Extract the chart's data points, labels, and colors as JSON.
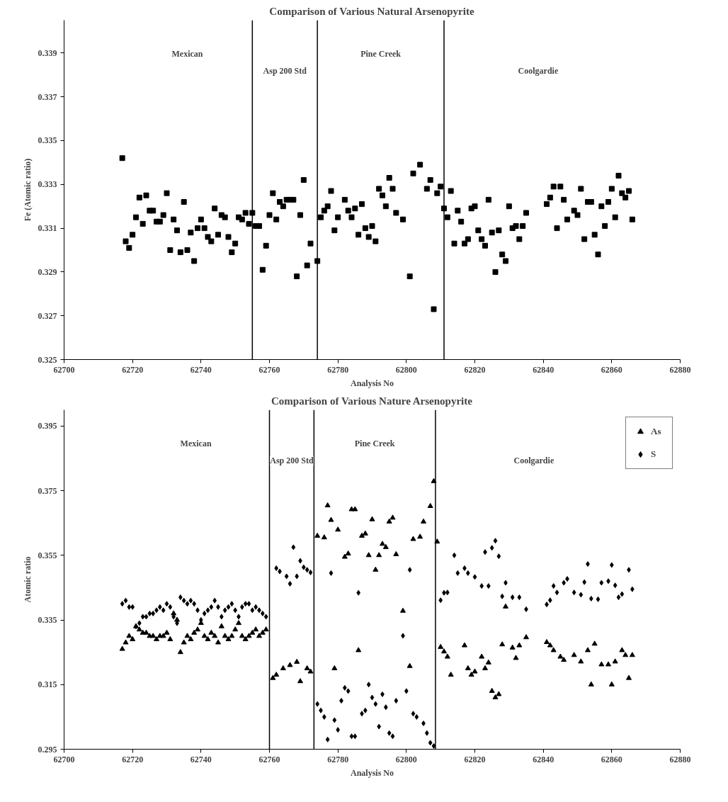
{
  "chart_data": [
    {
      "type": "scatter",
      "title": "Comparison of Various Natural Arsenopyrite",
      "xlabel": "Analysis No",
      "ylabel": "Fe (Atomic ratio)",
      "xlim": [
        62700,
        62880
      ],
      "xticks": [
        62700,
        62720,
        62740,
        62760,
        62780,
        62800,
        62820,
        62840,
        62860,
        62880
      ],
      "ylim": [
        0.325,
        0.3405
      ],
      "yticks": [
        0.325,
        0.327,
        0.329,
        0.331,
        0.333,
        0.335,
        0.337,
        0.339
      ],
      "grid": false,
      "marker": "square",
      "series": [
        {
          "color": "#000000",
          "x": [
            62717,
            62718,
            62719,
            62720,
            62721,
            62722,
            62723,
            62724,
            62725,
            62726,
            62727,
            62728,
            62729,
            62730,
            62731,
            62732,
            62733,
            62734,
            62735,
            62736,
            62737,
            62738,
            62739,
            62740,
            62741,
            62742,
            62743,
            62744,
            62745,
            62746,
            62747,
            62748,
            62749,
            62750,
            62751,
            62752,
            62753,
            62754,
            62755,
            62756,
            62757,
            62758,
            62759,
            62760,
            62761,
            62762,
            62763,
            62764,
            62765,
            62766,
            62767,
            62768,
            62769,
            62770,
            62771,
            62772,
            62774,
            62775,
            62776,
            62777,
            62778,
            62779,
            62780,
            62782,
            62783,
            62784,
            62785,
            62786,
            62787,
            62788,
            62789,
            62790,
            62791,
            62792,
            62793,
            62794,
            62795,
            62796,
            62797,
            62799,
            62801,
            62802,
            62804,
            62806,
            62807,
            62808,
            62809,
            62810,
            62811,
            62812,
            62813,
            62814,
            62815,
            62816,
            62817,
            62818,
            62819,
            62820,
            62821,
            62822,
            62823,
            62824,
            62825,
            62826,
            62827,
            62828,
            62829,
            62830,
            62831,
            62832,
            62833,
            62834,
            62835,
            62841,
            62842,
            62843,
            62844,
            62845,
            62846,
            62847,
            62849,
            62850,
            62851,
            62852,
            62853,
            62854,
            62855,
            62856,
            62857,
            62858,
            62859,
            62860,
            62861,
            62862,
            62863,
            62864,
            62865,
            62866
          ],
          "values": [
            0.3342,
            0.3304,
            0.3301,
            0.3307,
            0.3315,
            0.3324,
            0.3312,
            0.3325,
            0.3318,
            0.3318,
            0.3313,
            0.3313,
            0.3316,
            0.3326,
            0.33,
            0.3314,
            0.3309,
            0.3299,
            0.3322,
            0.33,
            0.3308,
            0.3295,
            0.331,
            0.3314,
            0.331,
            0.3306,
            0.3304,
            0.3319,
            0.3307,
            0.3316,
            0.3315,
            0.3306,
            0.3299,
            0.3303,
            0.3315,
            0.3314,
            0.3317,
            0.3312,
            0.3317,
            0.3311,
            0.3311,
            0.3291,
            0.3302,
            0.3316,
            0.3326,
            0.3314,
            0.3322,
            0.332,
            0.3323,
            0.3323,
            0.3323,
            0.3288,
            0.3316,
            0.3332,
            0.3293,
            0.3303,
            0.3295,
            0.3315,
            0.3318,
            0.332,
            0.3327,
            0.3309,
            0.3315,
            0.3323,
            0.3318,
            0.3315,
            0.3319,
            0.3307,
            0.3321,
            0.331,
            0.3306,
            0.3311,
            0.3304,
            0.3328,
            0.3325,
            0.332,
            0.3333,
            0.3328,
            0.3317,
            0.3314,
            0.3288,
            0.3335,
            0.3339,
            0.3328,
            0.3332,
            0.3273,
            0.3326,
            0.3329,
            0.3319,
            0.3315,
            0.3327,
            0.3303,
            0.3318,
            0.3313,
            0.3303,
            0.3305,
            0.3319,
            0.332,
            0.3309,
            0.3305,
            0.3302,
            0.3323,
            0.3308,
            0.329,
            0.3309,
            0.3298,
            0.3295,
            0.332,
            0.331,
            0.3311,
            0.3305,
            0.3311,
            0.3317,
            0.3321,
            0.3324,
            0.3329,
            0.331,
            0.3329,
            0.3323,
            0.3314,
            0.3318,
            0.3316,
            0.3328,
            0.3305,
            0.3322,
            0.3322,
            0.3307,
            0.3298,
            0.332,
            0.3311,
            0.3322,
            0.3328,
            0.3315,
            0.3334,
            0.3326,
            0.3324,
            0.3327,
            0.3314
          ]
        }
      ],
      "ref_lines": [
        {
          "axis": "x",
          "value": 62755,
          "label": null
        },
        {
          "axis": "x",
          "value": 62774,
          "label": null
        },
        {
          "axis": "x",
          "value": 62811,
          "label": null
        }
      ],
      "annotations": [
        "Mexican",
        "Asp 200 Std",
        "Pine Creek",
        "Coolgardie"
      ]
    },
    {
      "type": "scatter",
      "title": "Comparison of Various Nature Arsenopyrite",
      "xlabel": "Analysis No",
      "ylabel": "Atomic ratio",
      "xlim": [
        62700,
        62880
      ],
      "xticks": [
        62700,
        62720,
        62740,
        62760,
        62780,
        62800,
        62820,
        62840,
        62860,
        62880
      ],
      "ylim": [
        0.295,
        0.4
      ],
      "yticks": [
        0.295,
        0.315,
        0.335,
        0.355,
        0.375,
        0.395
      ],
      "grid": false,
      "legend": "top right",
      "series": [
        {
          "name": "As",
          "color": "#000000",
          "marker": "triangle",
          "x": [
            62717,
            62718,
            62719,
            62720,
            62721,
            62722,
            62723,
            62724,
            62725,
            62726,
            62727,
            62728,
            62729,
            62730,
            62731,
            62732,
            62733,
            62734,
            62735,
            62736,
            62737,
            62738,
            62739,
            62740,
            62741,
            62742,
            62743,
            62744,
            62745,
            62746,
            62747,
            62748,
            62749,
            62750,
            62751,
            62752,
            62753,
            62754,
            62755,
            62756,
            62757,
            62758,
            62759,
            62761,
            62762,
            62764,
            62766,
            62768,
            62769,
            62771,
            62772,
            62774,
            62776,
            62777,
            62778,
            62779,
            62780,
            62782,
            62783,
            62784,
            62785,
            62786,
            62787,
            62788,
            62789,
            62790,
            62791,
            62792,
            62793,
            62794,
            62795,
            62796,
            62797,
            62799,
            62801,
            62802,
            62804,
            62805,
            62807,
            62808,
            62809,
            62810,
            62811,
            62812,
            62813,
            62817,
            62818,
            62819,
            62820,
            62822,
            62823,
            62824,
            62825,
            62826,
            62827,
            62828,
            62829,
            62831,
            62832,
            62833,
            62835,
            62841,
            62842,
            62843,
            62845,
            62846,
            62849,
            62851,
            62853,
            62854,
            62855,
            62857,
            62859,
            62860,
            62861,
            62863,
            62864,
            62865,
            62866
          ],
          "values": [
            0.326,
            0.328,
            0.33,
            0.329,
            0.333,
            0.332,
            0.331,
            0.331,
            0.33,
            0.33,
            0.329,
            0.33,
            0.33,
            0.331,
            0.329,
            0.337,
            0.335,
            0.325,
            0.328,
            0.33,
            0.329,
            0.331,
            0.332,
            0.334,
            0.33,
            0.329,
            0.331,
            0.33,
            0.328,
            0.333,
            0.33,
            0.329,
            0.33,
            0.332,
            0.334,
            0.33,
            0.329,
            0.33,
            0.331,
            0.332,
            0.33,
            0.331,
            0.332,
            0.317,
            0.318,
            0.32,
            0.321,
            0.322,
            0.316,
            0.32,
            0.319,
            0.361,
            0.3605,
            0.3704,
            0.3659,
            0.32,
            0.3629,
            0.3545,
            0.3555,
            0.3692,
            0.3692,
            0.3256,
            0.361,
            0.3617,
            0.355,
            0.3661,
            0.3505,
            0.355,
            0.3585,
            0.3575,
            0.3654,
            0.3666,
            0.3553,
            0.3378,
            0.3207,
            0.36,
            0.3607,
            0.3654,
            0.3702,
            0.3779,
            0.3592,
            0.3266,
            0.3252,
            0.3236,
            0.318,
            0.3271,
            0.32,
            0.318,
            0.319,
            0.3236,
            0.32,
            0.3218,
            0.313,
            0.311,
            0.312,
            0.3274,
            0.3391,
            0.3264,
            0.3232,
            0.3271,
            0.3296,
            0.3281,
            0.3271,
            0.3256,
            0.3236,
            0.3226,
            0.3241,
            0.3221,
            0.3256,
            0.315,
            0.3276,
            0.3212,
            0.3212,
            0.315,
            0.3221,
            0.3256,
            0.3241,
            0.317,
            0.3241
          ]
        },
        {
          "name": "S",
          "color": "#000000",
          "marker": "diamond",
          "x": [
            62717,
            62718,
            62719,
            62720,
            62721,
            62722,
            62723,
            62724,
            62725,
            62726,
            62727,
            62728,
            62729,
            62730,
            62731,
            62732,
            62733,
            62734,
            62735,
            62736,
            62737,
            62738,
            62739,
            62740,
            62741,
            62742,
            62743,
            62744,
            62745,
            62746,
            62747,
            62748,
            62749,
            62750,
            62751,
            62752,
            62753,
            62754,
            62755,
            62756,
            62757,
            62758,
            62759,
            62762,
            62763,
            62765,
            62766,
            62767,
            62768,
            62769,
            62770,
            62771,
            62772,
            62774,
            62775,
            62776,
            62777,
            62778,
            62779,
            62780,
            62781,
            62782,
            62783,
            62784,
            62785,
            62786,
            62787,
            62788,
            62789,
            62790,
            62791,
            62792,
            62793,
            62794,
            62795,
            62796,
            62797,
            62799,
            62800,
            62801,
            62802,
            62803,
            62805,
            62806,
            62807,
            62808,
            62810,
            62811,
            62812,
            62814,
            62815,
            62817,
            62818,
            62820,
            62822,
            62823,
            62824,
            62825,
            62826,
            62827,
            62828,
            62829,
            62831,
            62833,
            62835,
            62841,
            62842,
            62843,
            62844,
            62846,
            62847,
            62849,
            62851,
            62852,
            62853,
            62854,
            62856,
            62857,
            62859,
            62860,
            62861,
            62862,
            62863,
            62865,
            62866
          ],
          "values": [
            0.34,
            0.341,
            0.339,
            0.339,
            0.333,
            0.334,
            0.336,
            0.336,
            0.337,
            0.337,
            0.338,
            0.339,
            0.338,
            0.34,
            0.339,
            0.336,
            0.334,
            0.342,
            0.341,
            0.34,
            0.341,
            0.34,
            0.338,
            0.335,
            0.337,
            0.338,
            0.339,
            0.341,
            0.339,
            0.336,
            0.338,
            0.339,
            0.34,
            0.338,
            0.336,
            0.339,
            0.34,
            0.34,
            0.338,
            0.339,
            0.338,
            0.337,
            0.336,
            0.351,
            0.35,
            0.3485,
            0.3462,
            0.3575,
            0.3485,
            0.3533,
            0.3513,
            0.3505,
            0.3497,
            0.309,
            0.307,
            0.305,
            0.298,
            0.3495,
            0.304,
            0.301,
            0.31,
            0.314,
            0.313,
            0.299,
            0.299,
            0.3434,
            0.306,
            0.307,
            0.315,
            0.311,
            0.309,
            0.302,
            0.312,
            0.308,
            0.3,
            0.299,
            0.31,
            0.3301,
            0.313,
            0.3505,
            0.306,
            0.305,
            0.303,
            0.3,
            0.297,
            0.296,
            0.3411,
            0.3434,
            0.3435,
            0.355,
            0.3495,
            0.351,
            0.3495,
            0.3483,
            0.3455,
            0.356,
            0.3455,
            0.3573,
            0.3595,
            0.3547,
            0.3423,
            0.3465,
            0.342,
            0.342,
            0.3383,
            0.3398,
            0.3411,
            0.3455,
            0.3435,
            0.3465,
            0.3477,
            0.3435,
            0.3428,
            0.3467,
            0.3523,
            0.3416,
            0.3414,
            0.3465,
            0.347,
            0.352,
            0.3457,
            0.342,
            0.343,
            0.3505,
            0.3445
          ]
        }
      ],
      "ref_lines": [
        {
          "axis": "x",
          "value": 62760,
          "label": null
        },
        {
          "axis": "x",
          "value": 62773,
          "label": null
        },
        {
          "axis": "x",
          "value": 62808.5,
          "label": null
        }
      ],
      "annotations": [
        "Mexican",
        "Asp 200 Std",
        "Pine Creek",
        "Coolgardie"
      ]
    }
  ]
}
